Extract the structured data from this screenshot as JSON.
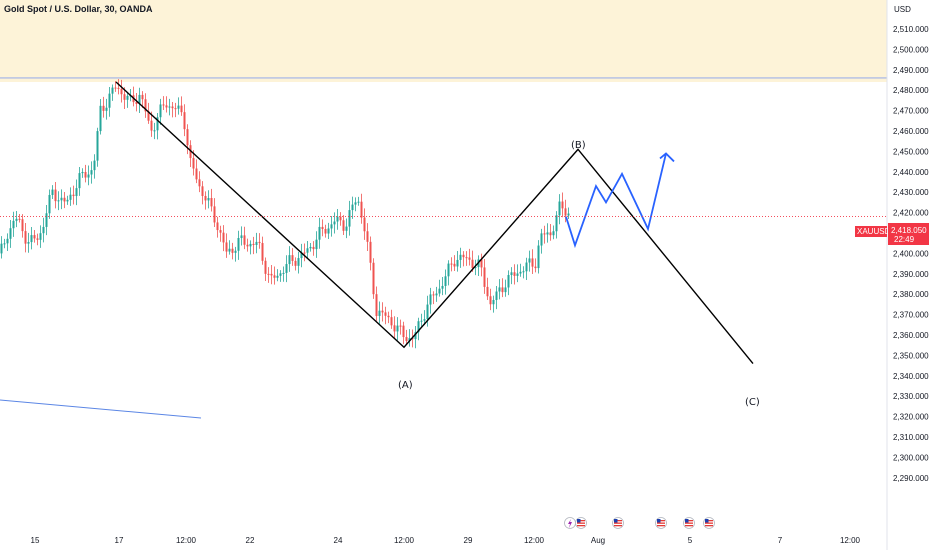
{
  "header": {
    "title": "Gold Spot / U.S. Dollar, 30, OANDA"
  },
  "chart_data": {
    "type": "line",
    "currency_label": "USD",
    "price_ticks": [
      "2,510.000",
      "2,500.000",
      "2,490.000",
      "2,480.000",
      "2,470.000",
      "2,460.000",
      "2,450.000",
      "2,440.000",
      "2,430.000",
      "2,420.000",
      "2,410.000",
      "2,400.000",
      "2,390.000",
      "2,380.000",
      "2,370.000",
      "2,360.000",
      "2,350.000",
      "2,340.000",
      "2,330.000",
      "2,320.000",
      "2,310.000",
      "2,300.000",
      "2,290.000"
    ],
    "time_ticks": [
      "15",
      "17",
      "12:00",
      "22",
      "24",
      "12:00",
      "29",
      "12:00",
      "Aug",
      "5",
      "7",
      "12:00"
    ],
    "ylim": [
      2286,
      2518
    ],
    "resistance_level": 2486,
    "price_tag": {
      "symbol": "XAUUSD",
      "price": "2,418.050",
      "countdown": "22:49",
      "value": 2418.05
    },
    "wave_labels": [
      {
        "label": "(A)",
        "point": 2354
      },
      {
        "label": "(B)",
        "point": 2451
      },
      {
        "label": "(C)",
        "point": 2346
      }
    ],
    "wave_path": [
      {
        "x": "Jul 17 12:00",
        "y": 2484
      },
      {
        "x": "Jul 25 12:00",
        "y": 2354
      },
      {
        "x": "Jul 30 12:00",
        "y": 2451
      },
      {
        "x": "Aug 6 06:00",
        "y": 2346
      }
    ],
    "projection_path": [
      {
        "x": "Jul 30 12:00",
        "y": 2418
      },
      {
        "x": "Jul 31 00:00",
        "y": 2404
      },
      {
        "x": "Aug 1 00:00",
        "y": 2433
      },
      {
        "x": "Aug 1 12:00",
        "y": 2425
      },
      {
        "x": "Aug 2 00:00",
        "y": 2439
      },
      {
        "x": "Aug 3 00:00",
        "y": 2412
      },
      {
        "x": "Aug 4 00:00",
        "y": 2449
      }
    ],
    "colors": {
      "bull": "#26a69a",
      "bear": "#ef5350",
      "zone": "#fdf3d8",
      "resistance": "#9fb2e8",
      "projection": "#2962ff",
      "wave": "#000000",
      "price_line": "#f23645",
      "trendline": "#5b86e5"
    },
    "event_icons": [
      "lightning-flag-icon",
      "us-flag-icon",
      "us-flag-icon",
      "us-flag-icon",
      "us-flag-icon",
      "us-flag-icon"
    ]
  }
}
